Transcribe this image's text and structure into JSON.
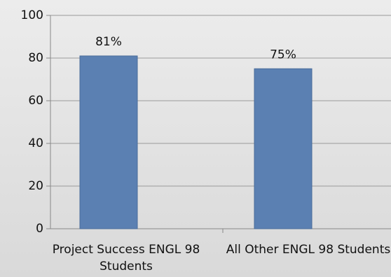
{
  "chart_data": {
    "type": "bar",
    "categories": [
      "Project Success ENGL 98 Students",
      "All Other ENGL 98 Students"
    ],
    "values": [
      81,
      75
    ],
    "value_labels": [
      "81%",
      "75%"
    ],
    "color": "#5b80b2",
    "ylim": [
      0,
      100
    ],
    "yticks": [
      0,
      20,
      40,
      60,
      80,
      100
    ],
    "grid": true
  }
}
